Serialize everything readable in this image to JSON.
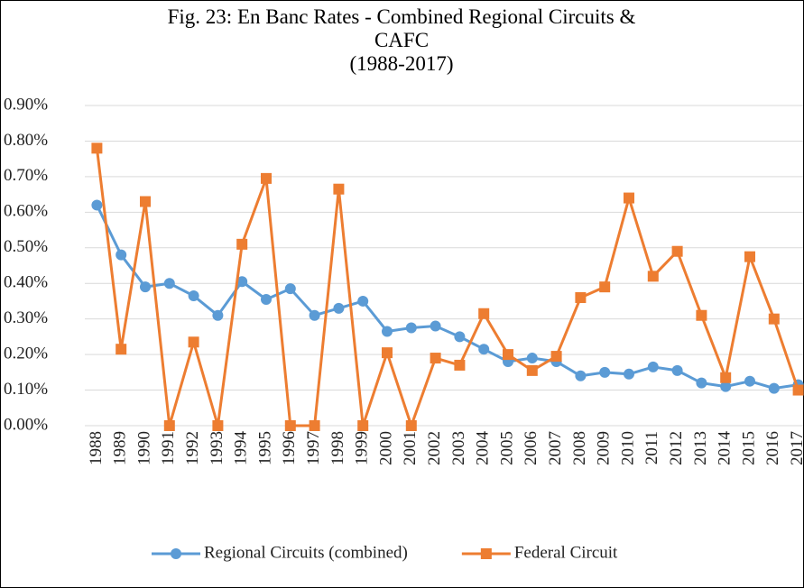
{
  "chart_data": {
    "type": "line",
    "title": "Fig. 23: En Banc Rates - Combined Regional Circuits & CAFC",
    "subtitle": "(1988-2017)",
    "categories": [
      "1988",
      "1989",
      "1990",
      "1991",
      "1992",
      "1993",
      "1994",
      "1995",
      "1996",
      "1997",
      "1998",
      "1999",
      "2000",
      "2001",
      "2002",
      "2003",
      "2004",
      "2005",
      "2006",
      "2007",
      "2008",
      "2009",
      "2010",
      "2011",
      "2012",
      "2013",
      "2014",
      "2015",
      "2016",
      "2017"
    ],
    "series": [
      {
        "name": "Regional Circuits (combined)",
        "color": "#5b9bd5",
        "marker": "circle",
        "values": [
          0.62,
          0.48,
          0.39,
          0.4,
          0.365,
          0.31,
          0.405,
          0.355,
          0.385,
          0.31,
          0.33,
          0.35,
          0.265,
          0.275,
          0.28,
          0.25,
          0.215,
          0.18,
          0.19,
          0.18,
          0.14,
          0.15,
          0.145,
          0.165,
          0.155,
          0.12,
          0.11,
          0.125,
          0.105,
          0.115
        ]
      },
      {
        "name": "Federal Circuit",
        "color": "#ed7d31",
        "marker": "square",
        "values": [
          0.78,
          0.215,
          0.63,
          0,
          0.235,
          0,
          0.51,
          0.695,
          0,
          0,
          0.665,
          0,
          0.205,
          0,
          0.19,
          0.17,
          0.315,
          0.2,
          0.155,
          0.195,
          0.36,
          0.39,
          0.64,
          0.42,
          0.49,
          0.31,
          0.135,
          0.475,
          0.3,
          0.1
        ]
      }
    ],
    "ylim": [
      0,
      0.9
    ],
    "yticks": [
      {
        "value": 0,
        "label": "0.00%"
      },
      {
        "value": 0.1,
        "label": "0.10%"
      },
      {
        "value": 0.2,
        "label": "0.20%"
      },
      {
        "value": 0.3,
        "label": "0.30%"
      },
      {
        "value": 0.4,
        "label": "0.40%"
      },
      {
        "value": 0.5,
        "label": "0.50%"
      },
      {
        "value": 0.6,
        "label": "0.60%"
      },
      {
        "value": 0.7,
        "label": "0.70%"
      },
      {
        "value": 0.8,
        "label": "0.80%"
      },
      {
        "value": 0.9,
        "label": "0.90%"
      }
    ],
    "grid": true,
    "legend": "bottom"
  }
}
